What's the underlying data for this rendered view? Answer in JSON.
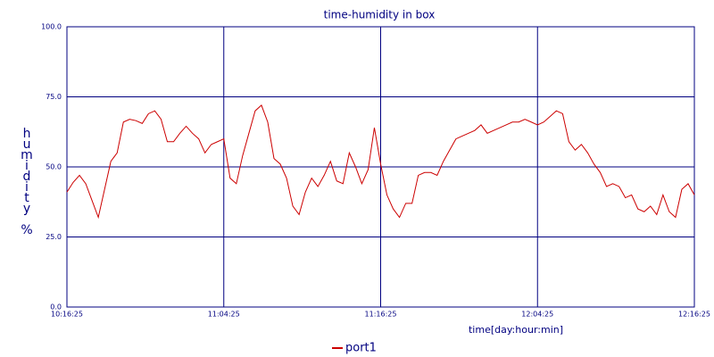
{
  "chart_data": {
    "type": "line",
    "title": "time-humidity in box",
    "x_label": "time[day:hour:min]",
    "y_label": "humidity %",
    "xlim": [
      0,
      100
    ],
    "xticks": [
      {
        "value": 0,
        "label": "10:16:25"
      },
      {
        "value": 25,
        "label": "11:04:25"
      },
      {
        "value": 50,
        "label": "11:16:25"
      },
      {
        "value": 75,
        "label": "12:04:25"
      },
      {
        "value": 100,
        "label": "12:16:25"
      }
    ],
    "ylim": [
      0,
      100
    ],
    "yticks": [
      {
        "value": 0,
        "label": "0.0"
      },
      {
        "value": 25,
        "label": "25.0"
      },
      {
        "value": 50,
        "label": "50.0"
      },
      {
        "value": 75,
        "label": "75.0"
      },
      {
        "value": 100,
        "label": "100.0"
      }
    ],
    "grid": true,
    "legend": "bottom",
    "series": [
      {
        "name": "port1",
        "color": "#cc0000",
        "values": [
          41,
          44.5,
          47,
          44,
          38,
          32,
          42,
          52,
          55,
          66,
          67,
          66.5,
          65.5,
          69,
          70,
          67,
          59,
          59,
          62,
          64.5,
          62,
          60,
          55,
          58,
          59,
          60,
          46,
          44,
          54,
          62,
          70,
          72,
          66,
          53,
          51,
          46,
          36,
          33,
          41,
          46,
          43,
          47,
          52,
          45,
          44,
          55,
          50,
          44,
          49,
          64,
          51,
          40,
          35,
          32,
          37,
          37,
          47,
          48,
          48,
          47,
          52,
          56,
          60,
          61,
          62,
          63,
          65,
          62,
          63,
          64,
          65,
          66,
          66,
          67,
          66,
          65,
          66,
          68,
          70,
          69,
          59,
          56,
          58,
          55,
          51,
          48,
          43,
          44,
          43,
          39,
          40,
          35,
          34,
          36,
          33,
          40,
          34,
          32,
          42,
          44,
          40
        ]
      }
    ]
  }
}
